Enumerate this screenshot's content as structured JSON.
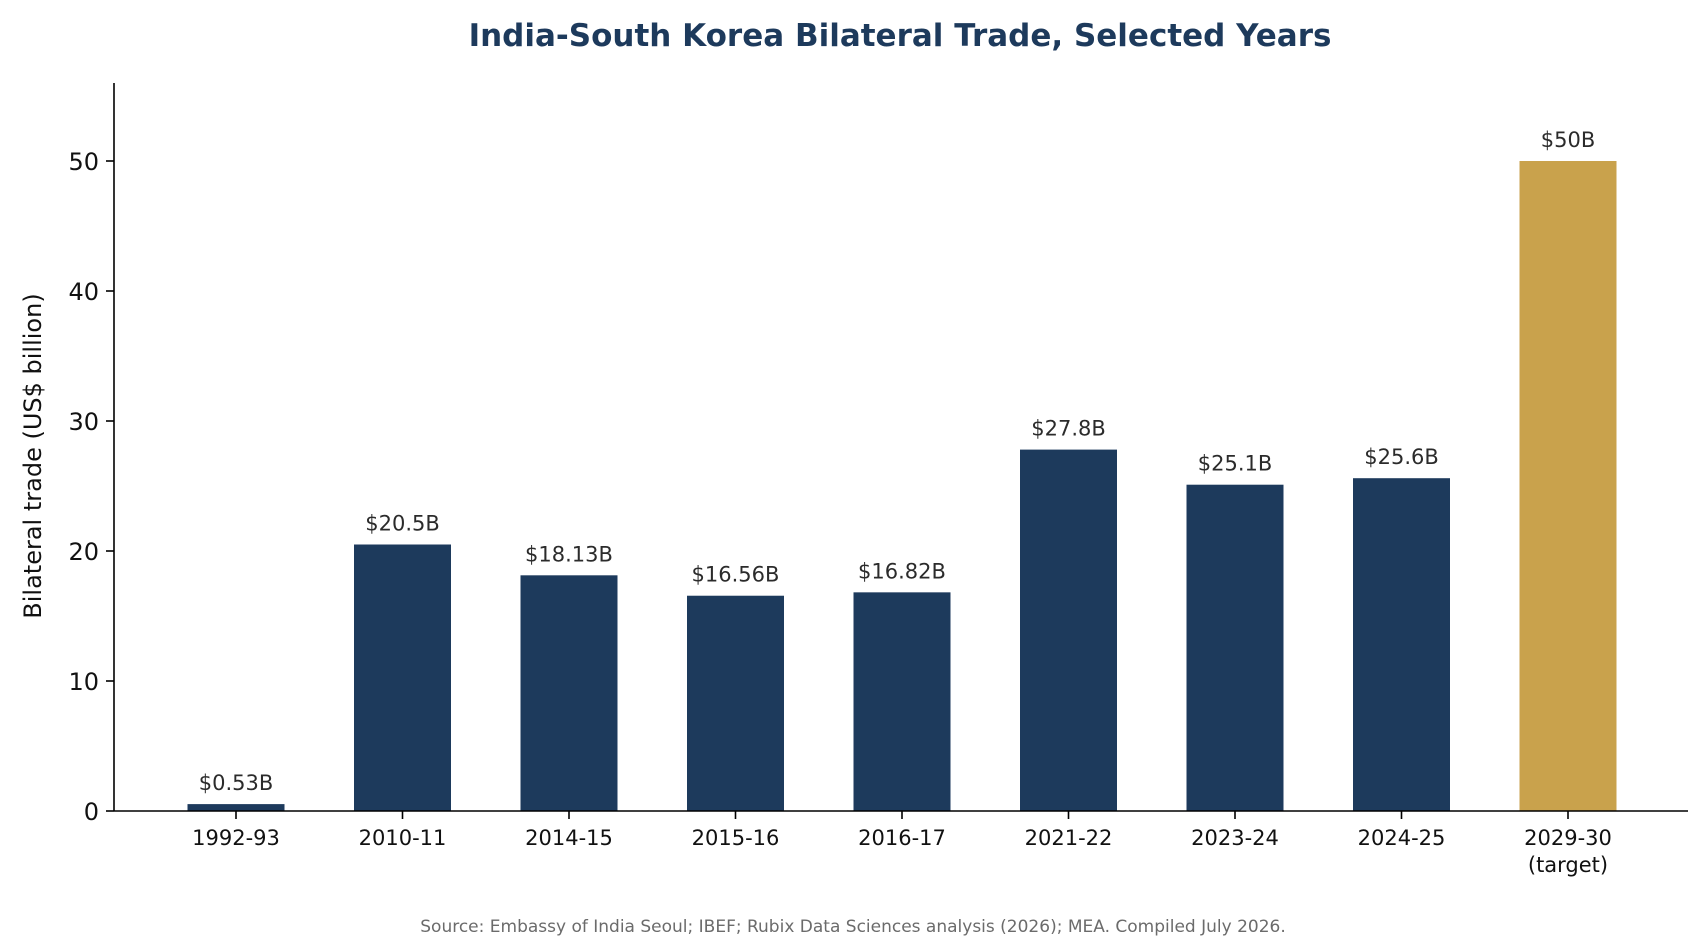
{
  "chart_data": {
    "type": "bar",
    "title": "India-South Korea Bilateral Trade, Selected Years",
    "ylabel": "Bilateral trade (US$ billion)",
    "xlabel": "",
    "categories": [
      [
        "1992-93"
      ],
      [
        "2010-11"
      ],
      [
        "2014-15"
      ],
      [
        "2015-16"
      ],
      [
        "2016-17"
      ],
      [
        "2021-22"
      ],
      [
        "2023-24"
      ],
      [
        "2024-25"
      ],
      [
        "2029-30",
        "(target)"
      ]
    ],
    "values": [
      0.53,
      20.5,
      18.13,
      16.56,
      16.82,
      27.8,
      25.1,
      25.6,
      50
    ],
    "data_labels": [
      "$0.53B",
      "$20.5B",
      "$18.13B",
      "$16.56B",
      "$16.82B",
      "$27.8B",
      "$25.1B",
      "$25.6B",
      "$50B"
    ],
    "highlight": [
      false,
      false,
      false,
      false,
      false,
      false,
      false,
      false,
      true
    ],
    "ylim": [
      0,
      56
    ],
    "yticks": [
      0,
      10,
      20,
      30,
      40,
      50
    ],
    "grid": false,
    "legend": "none",
    "colors": {
      "bar": "#1d3a5c",
      "target_bar": "#c9a24c",
      "title": "#1d3a5c",
      "axis": "#000000"
    },
    "source": "Source: Embassy of India Seoul; IBEF; Rubix Data Sciences analysis (2026); MEA. Compiled July 2026."
  }
}
